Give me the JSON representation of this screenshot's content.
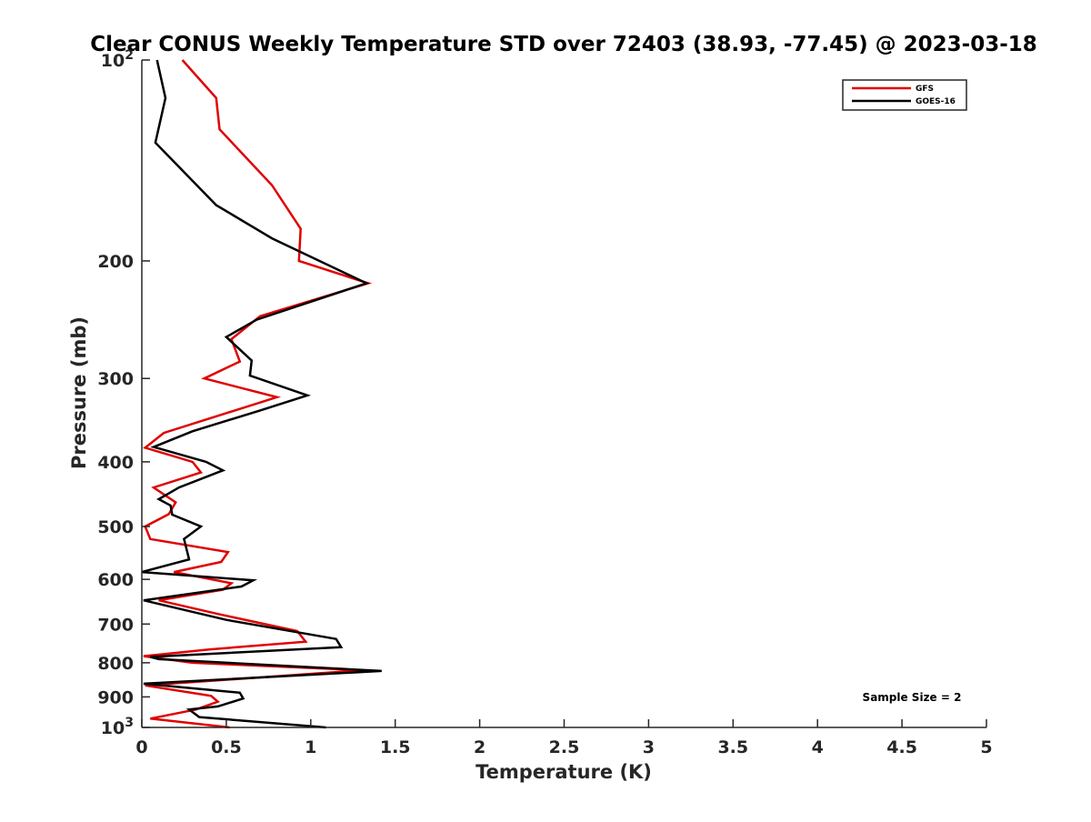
{
  "chart_data": {
    "type": "line",
    "title": "Clear CONUS Weekly Temperature STD over 72403 (38.93, -77.45) @ 2023-03-18",
    "xlabel": "Temperature (K)",
    "ylabel": "Pressure (mb)",
    "xlim": [
      0,
      5
    ],
    "ylim": [
      100,
      1000
    ],
    "yscale": "log",
    "y_reversed": true,
    "xticks": [
      0,
      0.5,
      1,
      1.5,
      2,
      2.5,
      3,
      3.5,
      4,
      4.5,
      5
    ],
    "xtick_labels": [
      "0",
      "0.5",
      "1",
      "1.5",
      "2",
      "2.5",
      "3",
      "3.5",
      "4",
      "4.5",
      "5"
    ],
    "yticks": [
      100,
      200,
      300,
      400,
      500,
      600,
      700,
      800,
      900,
      1000
    ],
    "ytick_labels": [
      {
        "base": "10",
        "exp": "2"
      },
      {
        "base": "200",
        "exp": ""
      },
      {
        "base": "300",
        "exp": ""
      },
      {
        "base": "400",
        "exp": ""
      },
      {
        "base": "500",
        "exp": ""
      },
      {
        "base": "600",
        "exp": ""
      },
      {
        "base": "700",
        "exp": ""
      },
      {
        "base": "800",
        "exp": ""
      },
      {
        "base": "900",
        "exp": ""
      },
      {
        "base": "10",
        "exp": "3"
      }
    ],
    "grid": false,
    "legend_position": "top-right",
    "annotation": "Sample Size = 2",
    "series": [
      {
        "name": "GFS",
        "color": "#e00000",
        "points": [
          [
            0.24,
            100
          ],
          [
            0.44,
            114
          ],
          [
            0.46,
            127
          ],
          [
            0.77,
            154
          ],
          [
            0.94,
            179
          ],
          [
            0.93,
            200
          ],
          [
            1.34,
            216
          ],
          [
            0.7,
            242
          ],
          [
            0.53,
            262
          ],
          [
            0.58,
            283
          ],
          [
            0.37,
            300
          ],
          [
            0.8,
            320
          ],
          [
            0.13,
            362
          ],
          [
            0.02,
            381
          ],
          [
            0.3,
            400
          ],
          [
            0.35,
            415
          ],
          [
            0.07,
            437
          ],
          [
            0.2,
            460
          ],
          [
            0.16,
            479
          ],
          [
            0.02,
            500
          ],
          [
            0.05,
            522
          ],
          [
            0.51,
            546
          ],
          [
            0.47,
            565
          ],
          [
            0.19,
            585
          ],
          [
            0.53,
            608
          ],
          [
            0.48,
            622
          ],
          [
            0.1,
            645
          ],
          [
            0.45,
            676
          ],
          [
            0.92,
            717
          ],
          [
            0.97,
            744
          ],
          [
            0.4,
            764
          ],
          [
            0.01,
            782
          ],
          [
            0.3,
            800
          ],
          [
            1.31,
            821
          ],
          [
            0.02,
            865
          ],
          [
            0.41,
            897
          ],
          [
            0.45,
            915
          ],
          [
            0.32,
            940
          ],
          [
            0.05,
            970
          ],
          [
            0.52,
            1000
          ]
        ]
      },
      {
        "name": "GOES-16",
        "color": "#000000",
        "points": [
          [
            0.09,
            100
          ],
          [
            0.14,
            114
          ],
          [
            0.08,
            133
          ],
          [
            0.44,
            165
          ],
          [
            0.77,
            185
          ],
          [
            1.33,
            216
          ],
          [
            0.68,
            245
          ],
          [
            0.5,
            260
          ],
          [
            0.65,
            282
          ],
          [
            0.64,
            297
          ],
          [
            0.98,
            318
          ],
          [
            0.7,
            335
          ],
          [
            0.3,
            360
          ],
          [
            0.07,
            380
          ],
          [
            0.38,
            400
          ],
          [
            0.48,
            412
          ],
          [
            0.22,
            437
          ],
          [
            0.1,
            455
          ],
          [
            0.17,
            465
          ],
          [
            0.18,
            480
          ],
          [
            0.35,
            500
          ],
          [
            0.25,
            522
          ],
          [
            0.28,
            560
          ],
          [
            0.0,
            585
          ],
          [
            0.66,
            602
          ],
          [
            0.59,
            615
          ],
          [
            0.01,
            645
          ],
          [
            0.5,
            690
          ],
          [
            1.15,
            737
          ],
          [
            1.18,
            758
          ],
          [
            0.05,
            784
          ],
          [
            0.1,
            790
          ],
          [
            1.42,
            823
          ],
          [
            0.01,
            860
          ],
          [
            0.58,
            887
          ],
          [
            0.6,
            905
          ],
          [
            0.45,
            930
          ],
          [
            0.28,
            940
          ],
          [
            0.34,
            965
          ],
          [
            1.09,
            1000
          ]
        ]
      }
    ]
  }
}
